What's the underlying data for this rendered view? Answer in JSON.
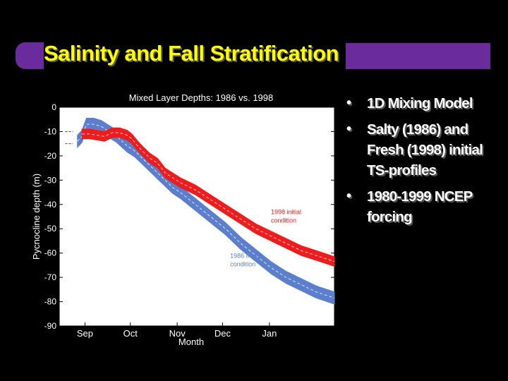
{
  "slide": {
    "title": "Salinity and Fall Stratification",
    "bullets": [
      "1D Mixing Model",
      "Salty (1986) and Fresh (1998) initial TS-profiles",
      "1980-1999 NCEP forcing"
    ],
    "colors": {
      "title": "#ffff00",
      "accent_bar": "#6a2c9c",
      "background": "#000000",
      "bullet_text": "#ffffff"
    }
  },
  "chart_data": {
    "type": "line",
    "title": "Mixed Layer Depths: 1986 vs. 1998",
    "xlabel": "Month",
    "ylabel": "Pycnocline depth (m)",
    "x_ticks": [
      "Sep",
      "Oct",
      "Nov",
      "Dec",
      "Jan"
    ],
    "x_unit": "days since Aug 15",
    "x_tick_values": [
      17,
      47,
      78,
      108,
      139
    ],
    "xlim": [
      0,
      182
    ],
    "ylim": [
      -90,
      0
    ],
    "y_ticks": [
      0,
      -10,
      -20,
      -30,
      -40,
      -50,
      -60,
      -70,
      -80,
      -90
    ],
    "grid": false,
    "series": [
      {
        "name": "1986",
        "color": "#5b7fcc",
        "band_half_width": 2.5,
        "annotation": "1986 Initial condition",
        "points": [
          [
            12,
            -14
          ],
          [
            15,
            -12
          ],
          [
            18,
            -7
          ],
          [
            23,
            -7
          ],
          [
            28,
            -8
          ],
          [
            33,
            -10
          ],
          [
            38,
            -12
          ],
          [
            45,
            -16
          ],
          [
            50,
            -18
          ],
          [
            55,
            -21
          ],
          [
            60,
            -24
          ],
          [
            65,
            -27
          ],
          [
            70,
            -30
          ],
          [
            75,
            -33
          ],
          [
            80,
            -35
          ],
          [
            90,
            -40
          ],
          [
            100,
            -45
          ],
          [
            110,
            -50
          ],
          [
            120,
            -56
          ],
          [
            130,
            -61
          ],
          [
            140,
            -66
          ],
          [
            150,
            -70
          ],
          [
            160,
            -73
          ],
          [
            170,
            -76
          ],
          [
            182,
            -78.5
          ]
        ]
      },
      {
        "name": "1998",
        "color": "#ee1c1c",
        "band_half_width": 2.0,
        "annotation": "1998 initial condition",
        "points": [
          [
            15,
            -11
          ],
          [
            20,
            -11
          ],
          [
            25,
            -11.5
          ],
          [
            30,
            -12
          ],
          [
            35,
            -10.5
          ],
          [
            40,
            -10.5
          ],
          [
            45,
            -11.5
          ],
          [
            48,
            -13
          ],
          [
            52,
            -16
          ],
          [
            55,
            -18
          ],
          [
            60,
            -21
          ],
          [
            65,
            -23
          ],
          [
            70,
            -27
          ],
          [
            75,
            -29
          ],
          [
            80,
            -31
          ],
          [
            90,
            -34
          ],
          [
            100,
            -38
          ],
          [
            110,
            -42
          ],
          [
            120,
            -46
          ],
          [
            130,
            -50
          ],
          [
            140,
            -53
          ],
          [
            150,
            -56
          ],
          [
            160,
            -59
          ],
          [
            170,
            -61
          ],
          [
            182,
            -63.5
          ]
        ]
      }
    ]
  }
}
